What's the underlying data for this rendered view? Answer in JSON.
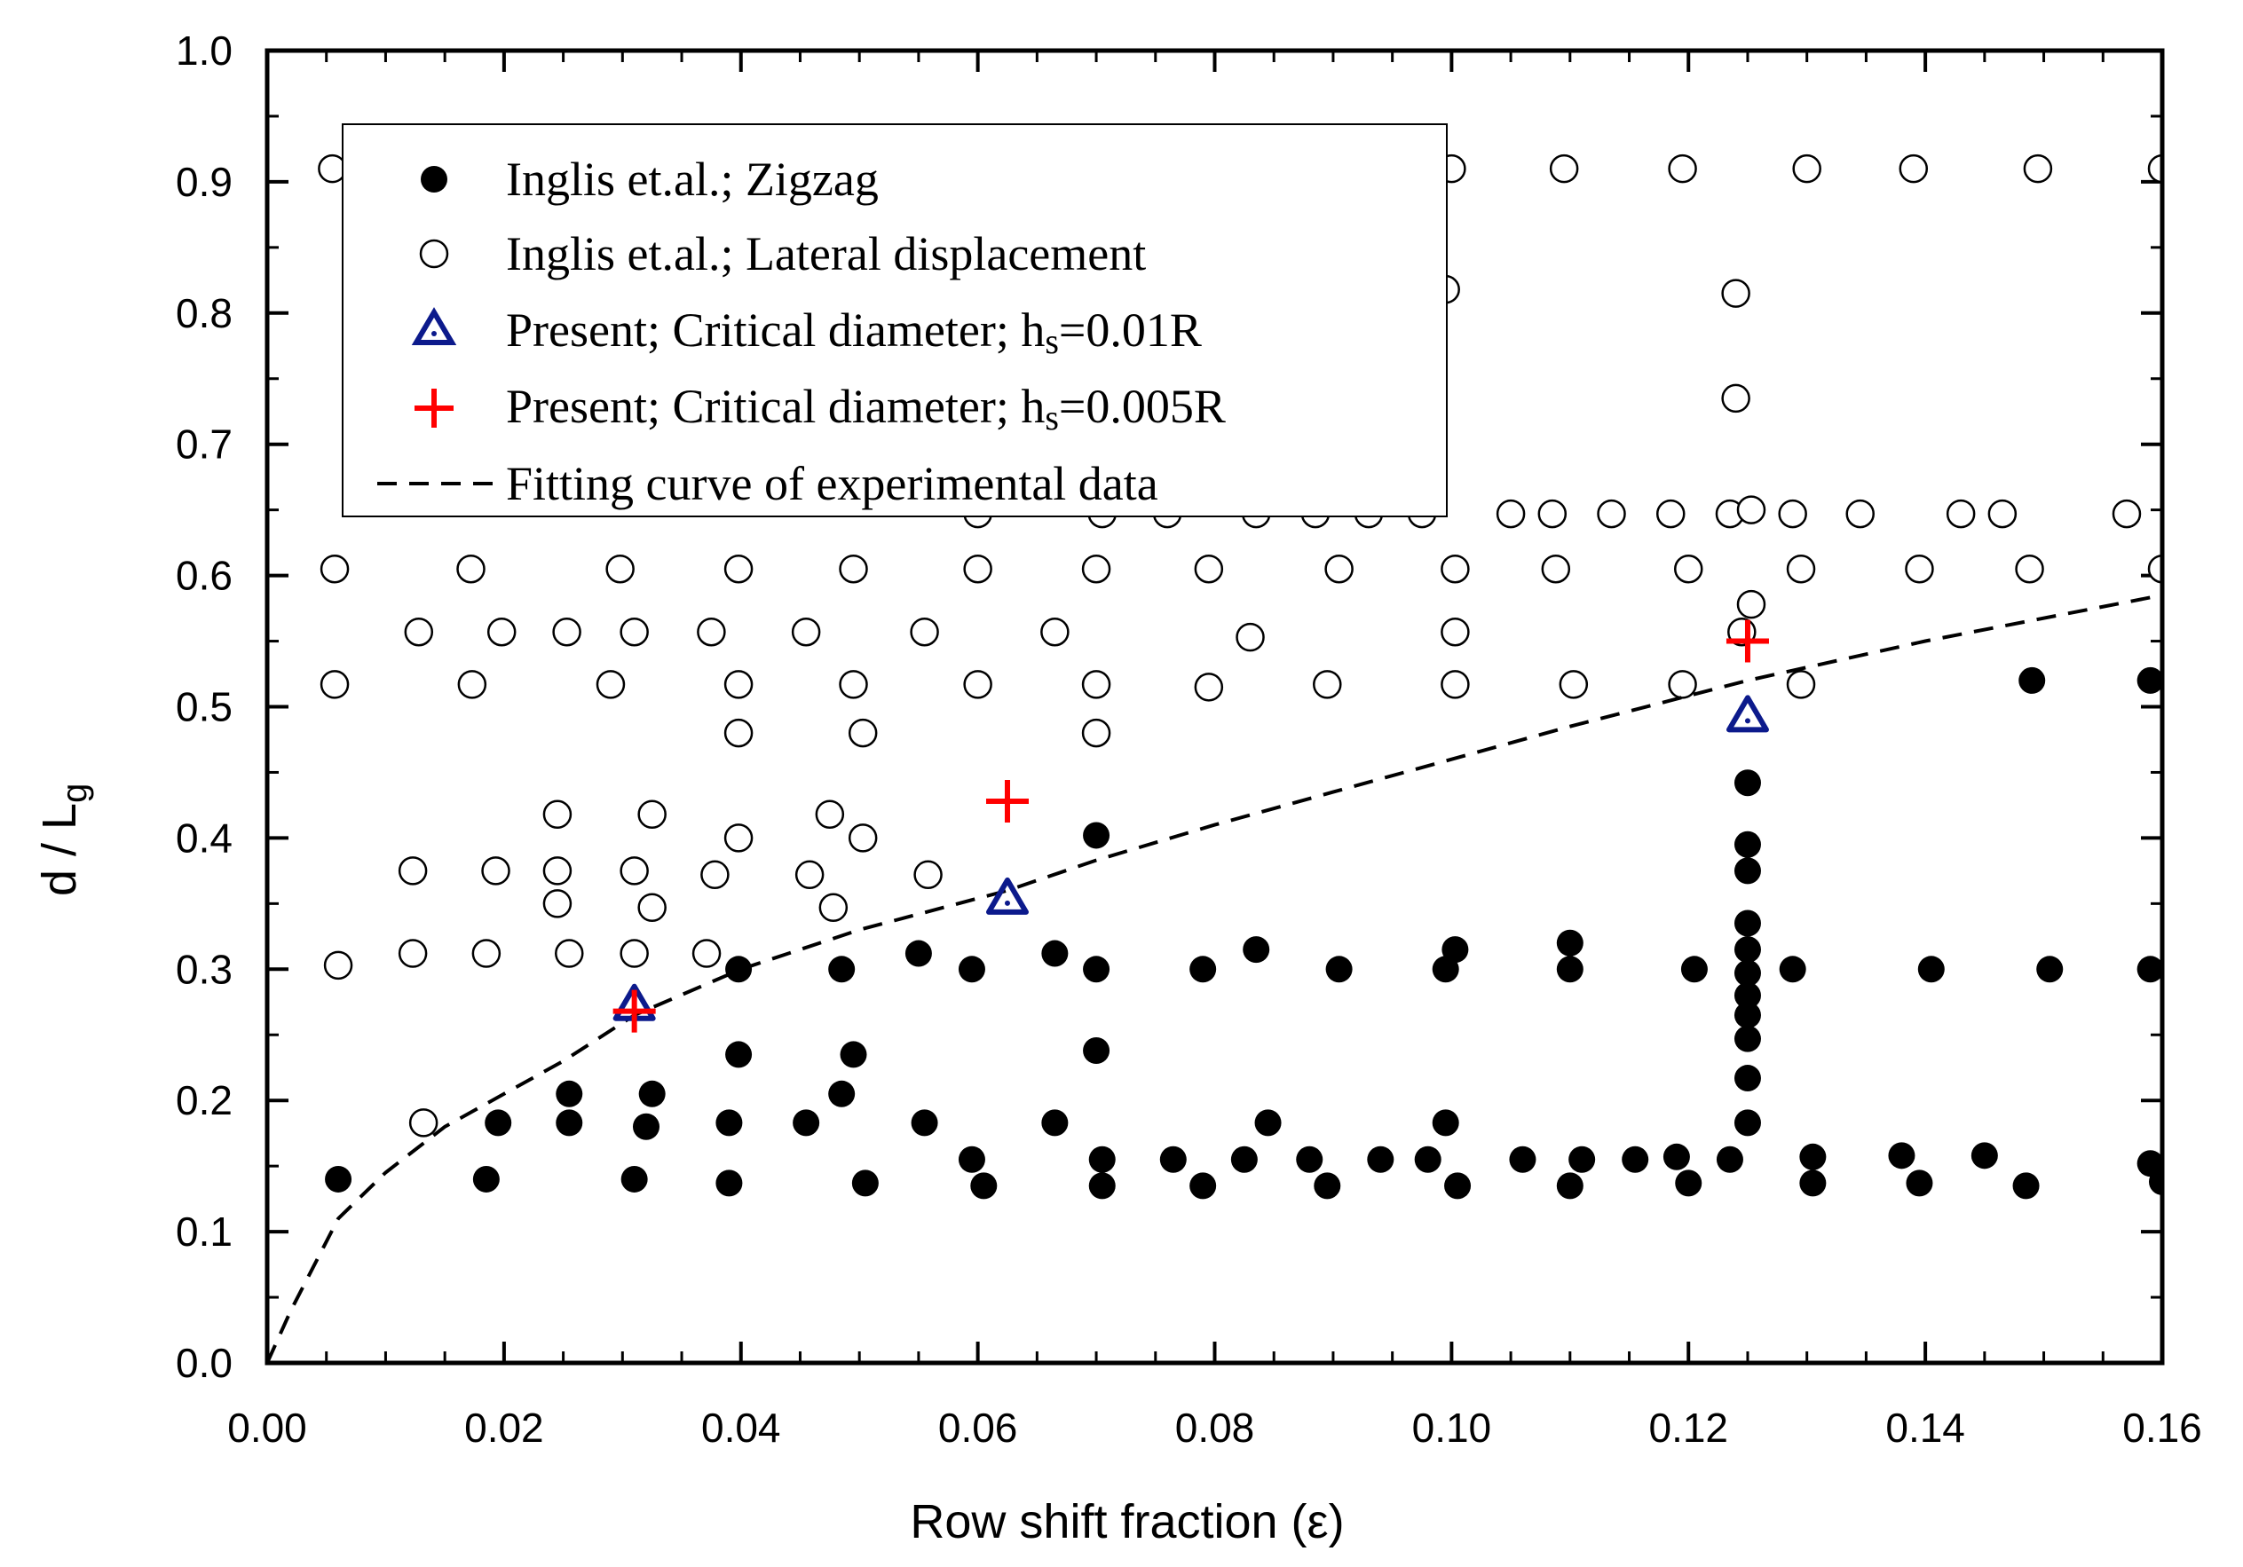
{
  "chart_data": {
    "type": "scatter",
    "xlabel": "Row shift fraction (ε)",
    "ylabel_main": "d / L",
    "ylabel_sub": "g",
    "xlim": [
      0,
      0.16
    ],
    "ylim": [
      0,
      1.0
    ],
    "x_ticks": [
      "0.00",
      "0.02",
      "0.04",
      "0.06",
      "0.08",
      "0.10",
      "0.12",
      "0.14",
      "0.16"
    ],
    "y_ticks": [
      "0.0",
      "0.1",
      "0.2",
      "0.3",
      "0.4",
      "0.5",
      "0.6",
      "0.7",
      "0.8",
      "0.9",
      "1.0"
    ],
    "legend_position": "top-left",
    "legend": [
      {
        "marker": "filled-circle",
        "label": "Inglis et.al.; Zigzag"
      },
      {
        "marker": "open-circle",
        "label": "Inglis et.al.; Lateral displacement"
      },
      {
        "marker": "triangle",
        "label_main": "Present; Critical diameter; h",
        "label_sub": "s",
        "label_tail": "=0.01R"
      },
      {
        "marker": "plus",
        "label_main": "Present; Critical diameter; h",
        "label_sub": "s",
        "label_tail": "=0.005R"
      },
      {
        "marker": "dashed-line",
        "label": "Fitting curve of experimental data"
      }
    ],
    "colors": {
      "triangle": "#0c1a8c",
      "plus": "#ff0000",
      "points": "#000000"
    },
    "series": [
      {
        "marker": "filled-circle",
        "points": [
          [
            0.006,
            0.14
          ],
          [
            0.0185,
            0.14
          ],
          [
            0.031,
            0.14
          ],
          [
            0.039,
            0.137
          ],
          [
            0.0505,
            0.137
          ],
          [
            0.0605,
            0.135
          ],
          [
            0.0705,
            0.135
          ],
          [
            0.079,
            0.135
          ],
          [
            0.0895,
            0.135
          ],
          [
            0.1005,
            0.135
          ],
          [
            0.11,
            0.135
          ],
          [
            0.12,
            0.137
          ],
          [
            0.1305,
            0.137
          ],
          [
            0.1395,
            0.137
          ],
          [
            0.1485,
            0.135
          ],
          [
            0.16,
            0.138
          ],
          [
            0.0595,
            0.155
          ],
          [
            0.0705,
            0.155
          ],
          [
            0.0765,
            0.155
          ],
          [
            0.0825,
            0.155
          ],
          [
            0.088,
            0.155
          ],
          [
            0.094,
            0.155
          ],
          [
            0.098,
            0.155
          ],
          [
            0.106,
            0.155
          ],
          [
            0.111,
            0.155
          ],
          [
            0.1155,
            0.155
          ],
          [
            0.119,
            0.157
          ],
          [
            0.1235,
            0.155
          ],
          [
            0.1305,
            0.157
          ],
          [
            0.138,
            0.158
          ],
          [
            0.145,
            0.158
          ],
          [
            0.159,
            0.152
          ],
          [
            0.0195,
            0.183
          ],
          [
            0.0255,
            0.183
          ],
          [
            0.032,
            0.18
          ],
          [
            0.039,
            0.183
          ],
          [
            0.0455,
            0.183
          ],
          [
            0.0555,
            0.183
          ],
          [
            0.0665,
            0.183
          ],
          [
            0.0845,
            0.183
          ],
          [
            0.0995,
            0.183
          ],
          [
            0.125,
            0.183
          ],
          [
            0.0255,
            0.205
          ],
          [
            0.0325,
            0.205
          ],
          [
            0.0485,
            0.205
          ],
          [
            0.0398,
            0.235
          ],
          [
            0.0495,
            0.235
          ],
          [
            0.07,
            0.238
          ],
          [
            0.0398,
            0.3
          ],
          [
            0.0485,
            0.3
          ],
          [
            0.055,
            0.312
          ],
          [
            0.0595,
            0.3
          ],
          [
            0.0665,
            0.312
          ],
          [
            0.07,
            0.3
          ],
          [
            0.079,
            0.3
          ],
          [
            0.0835,
            0.315
          ],
          [
            0.0905,
            0.3
          ],
          [
            0.0995,
            0.3
          ],
          [
            0.1003,
            0.315
          ],
          [
            0.11,
            0.3
          ],
          [
            0.11,
            0.32
          ],
          [
            0.1205,
            0.3
          ],
          [
            0.1288,
            0.3
          ],
          [
            0.1405,
            0.3
          ],
          [
            0.1505,
            0.3
          ],
          [
            0.159,
            0.3
          ],
          [
            0.07,
            0.402
          ],
          [
            0.125,
            0.217
          ],
          [
            0.125,
            0.247
          ],
          [
            0.125,
            0.265
          ],
          [
            0.125,
            0.28
          ],
          [
            0.125,
            0.297
          ],
          [
            0.125,
            0.315
          ],
          [
            0.125,
            0.335
          ],
          [
            0.125,
            0.375
          ],
          [
            0.125,
            0.395
          ],
          [
            0.125,
            0.442
          ],
          [
            0.149,
            0.52
          ],
          [
            0.159,
            0.52
          ]
        ]
      },
      {
        "marker": "open-circle",
        "points": [
          [
            0.0055,
            0.91
          ],
          [
            0.1,
            0.91
          ],
          [
            0.1095,
            0.91
          ],
          [
            0.1195,
            0.91
          ],
          [
            0.13,
            0.91
          ],
          [
            0.139,
            0.91
          ],
          [
            0.1495,
            0.91
          ],
          [
            0.16,
            0.91
          ],
          [
            0.0995,
            0.818
          ],
          [
            0.124,
            0.815
          ],
          [
            0.124,
            0.735
          ],
          [
            0.06,
            0.647
          ],
          [
            0.0705,
            0.647
          ],
          [
            0.076,
            0.647
          ],
          [
            0.0835,
            0.647
          ],
          [
            0.0885,
            0.647
          ],
          [
            0.093,
            0.647
          ],
          [
            0.0975,
            0.647
          ],
          [
            0.105,
            0.647
          ],
          [
            0.1085,
            0.647
          ],
          [
            0.1135,
            0.647
          ],
          [
            0.1185,
            0.647
          ],
          [
            0.1235,
            0.647
          ],
          [
            0.1253,
            0.65
          ],
          [
            0.1288,
            0.647
          ],
          [
            0.1345,
            0.647
          ],
          [
            0.143,
            0.647
          ],
          [
            0.1465,
            0.647
          ],
          [
            0.157,
            0.647
          ],
          [
            0.0057,
            0.605
          ],
          [
            0.0172,
            0.605
          ],
          [
            0.0298,
            0.605
          ],
          [
            0.0398,
            0.605
          ],
          [
            0.0495,
            0.605
          ],
          [
            0.06,
            0.605
          ],
          [
            0.07,
            0.605
          ],
          [
            0.0795,
            0.605
          ],
          [
            0.0905,
            0.605
          ],
          [
            0.1003,
            0.605
          ],
          [
            0.1088,
            0.605
          ],
          [
            0.12,
            0.605
          ],
          [
            0.1295,
            0.605
          ],
          [
            0.1395,
            0.605
          ],
          [
            0.1488,
            0.605
          ],
          [
            0.16,
            0.605
          ],
          [
            0.0128,
            0.557
          ],
          [
            0.0198,
            0.557
          ],
          [
            0.0253,
            0.557
          ],
          [
            0.031,
            0.557
          ],
          [
            0.0375,
            0.557
          ],
          [
            0.0455,
            0.557
          ],
          [
            0.0555,
            0.557
          ],
          [
            0.0665,
            0.557
          ],
          [
            0.083,
            0.553
          ],
          [
            0.1003,
            0.557
          ],
          [
            0.1245,
            0.557
          ],
          [
            0.1253,
            0.578
          ],
          [
            0.0057,
            0.517
          ],
          [
            0.0173,
            0.517
          ],
          [
            0.029,
            0.517
          ],
          [
            0.0398,
            0.517
          ],
          [
            0.0495,
            0.517
          ],
          [
            0.06,
            0.517
          ],
          [
            0.07,
            0.517
          ],
          [
            0.0795,
            0.515
          ],
          [
            0.0895,
            0.517
          ],
          [
            0.1003,
            0.517
          ],
          [
            0.1103,
            0.517
          ],
          [
            0.1195,
            0.517
          ],
          [
            0.1295,
            0.517
          ],
          [
            0.0398,
            0.48
          ],
          [
            0.0503,
            0.48
          ],
          [
            0.07,
            0.48
          ],
          [
            0.0245,
            0.418
          ],
          [
            0.0325,
            0.418
          ],
          [
            0.0475,
            0.418
          ],
          [
            0.0398,
            0.4
          ],
          [
            0.0503,
            0.4
          ],
          [
            0.0123,
            0.375
          ],
          [
            0.0193,
            0.375
          ],
          [
            0.0245,
            0.375
          ],
          [
            0.031,
            0.375
          ],
          [
            0.0378,
            0.372
          ],
          [
            0.0458,
            0.372
          ],
          [
            0.0558,
            0.372
          ],
          [
            0.0245,
            0.35
          ],
          [
            0.0325,
            0.347
          ],
          [
            0.0478,
            0.347
          ],
          [
            0.006,
            0.303
          ],
          [
            0.0123,
            0.312
          ],
          [
            0.0185,
            0.312
          ],
          [
            0.0255,
            0.312
          ],
          [
            0.031,
            0.312
          ],
          [
            0.0371,
            0.312
          ],
          [
            0.0132,
            0.183
          ]
        ]
      },
      {
        "marker": "triangle",
        "points": [
          [
            0.031,
            0.272
          ],
          [
            0.0625,
            0.353
          ],
          [
            0.125,
            0.492
          ]
        ]
      },
      {
        "marker": "plus",
        "points": [
          [
            0.031,
            0.268
          ],
          [
            0.0625,
            0.428
          ],
          [
            0.125,
            0.55
          ]
        ]
      },
      {
        "marker": "dashed-line",
        "points": [
          [
            0.0,
            0.0
          ],
          [
            0.002,
            0.04
          ],
          [
            0.004,
            0.075
          ],
          [
            0.006,
            0.11
          ],
          [
            0.01,
            0.145
          ],
          [
            0.015,
            0.18
          ],
          [
            0.02,
            0.205
          ],
          [
            0.025,
            0.23
          ],
          [
            0.031,
            0.265
          ],
          [
            0.04,
            0.3
          ],
          [
            0.05,
            0.33
          ],
          [
            0.0625,
            0.36
          ],
          [
            0.07,
            0.383
          ],
          [
            0.08,
            0.41
          ],
          [
            0.09,
            0.435
          ],
          [
            0.1,
            0.46
          ],
          [
            0.11,
            0.485
          ],
          [
            0.125,
            0.52
          ],
          [
            0.14,
            0.55
          ],
          [
            0.16,
            0.585
          ]
        ]
      }
    ]
  }
}
